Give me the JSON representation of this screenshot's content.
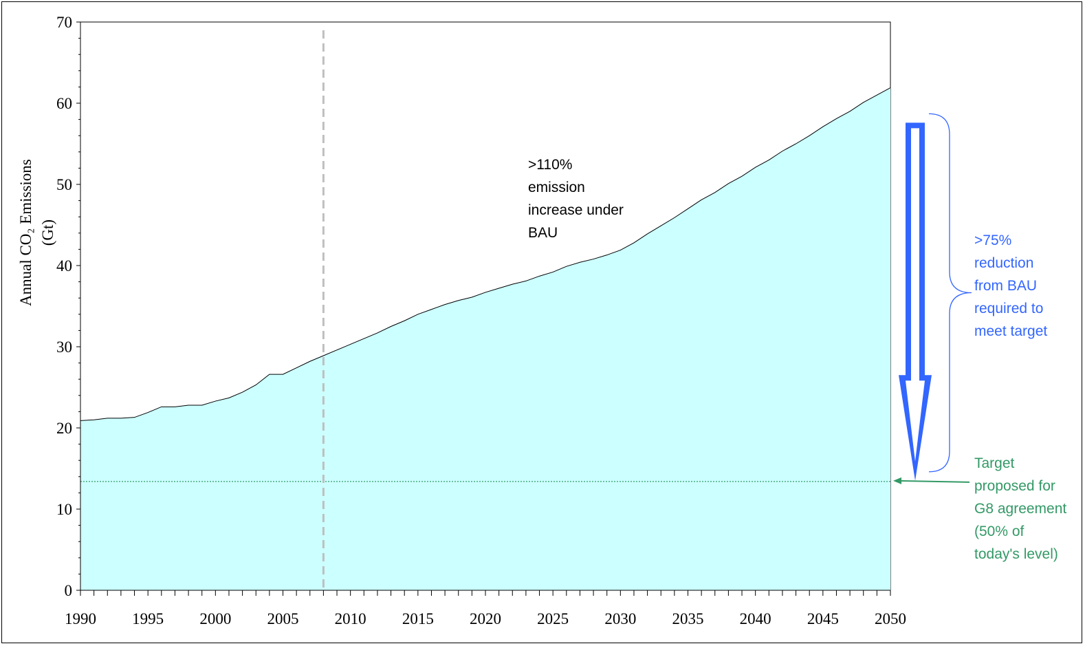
{
  "chart_data": {
    "type": "area",
    "ylabel_line1": "Annual CO₂ Emissions",
    "ylabel_line2": "(Gt)",
    "ylim": [
      0,
      70
    ],
    "yticks": [
      0,
      10,
      20,
      30,
      40,
      50,
      60,
      70
    ],
    "xlim": [
      1990,
      2050
    ],
    "xticks": [
      1990,
      1995,
      2000,
      2005,
      2010,
      2015,
      2020,
      2025,
      2030,
      2035,
      2040,
      2045,
      2050
    ],
    "series": [
      {
        "x": [
          1990,
          1991,
          1992,
          1993,
          1994,
          1995,
          1996,
          1997,
          1998,
          1999,
          2000,
          2001,
          2002,
          2003,
          2004,
          2005,
          2006,
          2007,
          2008,
          2009,
          2010,
          2011,
          2012,
          2013,
          2014,
          2015,
          2016,
          2017,
          2018,
          2019,
          2020,
          2021,
          2022,
          2023,
          2024,
          2025,
          2026,
          2027,
          2028,
          2029,
          2030,
          2031,
          2032,
          2033,
          2034,
          2035,
          2036,
          2037,
          2038,
          2039,
          2040,
          2041,
          2042,
          2043,
          2044,
          2045,
          2046,
          2047,
          2048,
          2049,
          2050
        ],
        "values": [
          20.9,
          21.0,
          21.2,
          21.2,
          21.3,
          21.9,
          22.6,
          22.6,
          22.8,
          22.8,
          23.3,
          23.7,
          24.4,
          25.3,
          26.6,
          26.6,
          27.4,
          28.2,
          28.9,
          29.6,
          30.3,
          31.0,
          31.7,
          32.5,
          33.2,
          34.0,
          34.6,
          35.2,
          35.7,
          36.1,
          36.7,
          37.2,
          37.7,
          38.1,
          38.7,
          39.2,
          39.9,
          40.4,
          40.8,
          41.3,
          41.9,
          42.8,
          43.9,
          44.9,
          45.9,
          47.0,
          48.1,
          49.0,
          50.1,
          51.0,
          52.1,
          53.0,
          54.1,
          55.0,
          56.0,
          57.1,
          58.1,
          59.0,
          60.1,
          61.0,
          61.9
        ],
        "fill_color": "#ccffff",
        "line_color": "#000000"
      }
    ],
    "marker_year": 2008,
    "target_value": 13.4,
    "arrow": {
      "from": 57.6,
      "to": 13.5,
      "color": "#3366ff"
    },
    "brace": {
      "from": 58.7,
      "to": 14.6,
      "color": "#3366ff"
    },
    "target_color": "#339966",
    "annotations": {
      "bau": ">110%\nemission\nincrease under\nBAU",
      "reduction": ">75%\nreduction\nfrom BAU\nrequired to\nmeet target",
      "target": "Target\nproposed for\nG8 agreement\n(50% of\ntoday's level)"
    }
  }
}
